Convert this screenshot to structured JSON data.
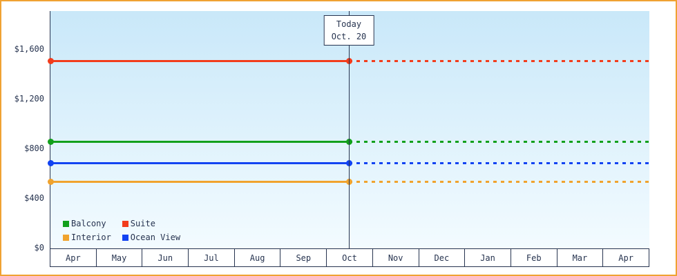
{
  "chart_data": {
    "type": "line",
    "title": "",
    "x_categories": [
      "Apr",
      "May",
      "Jun",
      "Jul",
      "Aug",
      "Sep",
      "Oct",
      "Nov",
      "Dec",
      "Jan",
      "Feb",
      "Mar",
      "Apr"
    ],
    "y_ticks": [
      {
        "label": "$0",
        "value": 0
      },
      {
        "label": "$400",
        "value": 400
      },
      {
        "label": "$800",
        "value": 800
      },
      {
        "label": "$1,200",
        "value": 1200
      },
      {
        "label": "$1,600",
        "value": 1600
      }
    ],
    "ylim": [
      0,
      1600
    ],
    "grid": false,
    "legend_position": "bottom-left",
    "today": {
      "line1": "Today",
      "line2": "Oct. 20",
      "x_fraction": 0.498
    },
    "series": [
      {
        "name": "Suite",
        "value": 1510,
        "color": "#f23c1c",
        "style": "solid-then-dotted"
      },
      {
        "name": "Balcony",
        "value": 860,
        "color": "#12a01c",
        "style": "solid-then-dotted"
      },
      {
        "name": "Ocean View",
        "value": 690,
        "color": "#1243f2",
        "style": "solid-then-dotted"
      },
      {
        "name": "Interior",
        "value": 540,
        "color": "#f0a32e",
        "style": "solid-then-dotted"
      }
    ],
    "legend": [
      {
        "label": "Balcony",
        "color": "#12a01c"
      },
      {
        "label": "Suite",
        "color": "#f23c1c"
      },
      {
        "label": "Interior",
        "color": "#f0a32e"
      },
      {
        "label": "Ocean View",
        "color": "#1243f2"
      }
    ],
    "colors": {
      "frame_border": "#f0a232",
      "axis_text": "#26334f",
      "plot_bg_top": "#c9e8f9",
      "plot_bg_bottom": "#f3fbff"
    }
  }
}
